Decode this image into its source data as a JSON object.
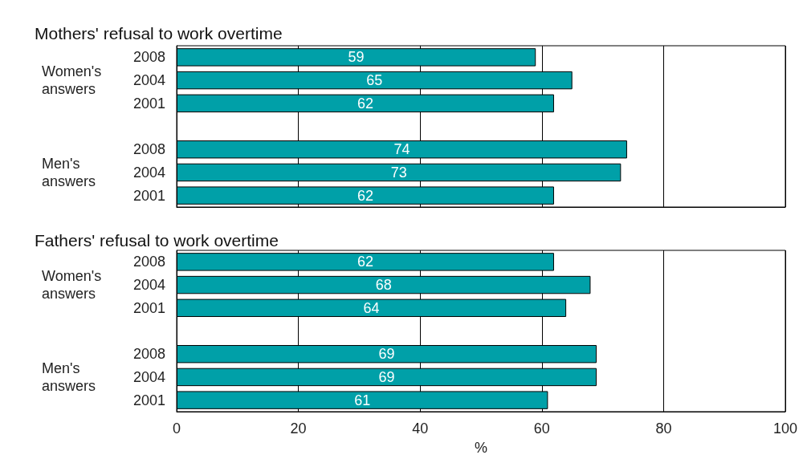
{
  "chart_data": [
    {
      "type": "bar",
      "orientation": "horizontal",
      "title": "Mothers' refusal to work overtime",
      "categories": [
        "2008",
        "2004",
        "2001",
        null,
        "2008",
        "2004",
        "2001"
      ],
      "values": [
        59,
        65,
        62,
        null,
        74,
        73,
        62
      ],
      "color": "#00a0a8",
      "data_labels": true,
      "xlim": [
        0,
        100
      ],
      "xticks": [
        0,
        20,
        40,
        60,
        80,
        100
      ],
      "grid": "x",
      "tick_labels": "y",
      "annotations": [
        "Women's answers",
        "Men's answers"
      ]
    },
    {
      "type": "bar",
      "orientation": "horizontal",
      "title": "Fathers' refusal to work overtime",
      "categories": [
        "2008",
        "2004",
        "2001",
        null,
        "2008",
        "2004",
        "2001"
      ],
      "values": [
        62,
        68,
        64,
        null,
        69,
        69,
        61
      ],
      "color": "#00a0a8",
      "data_labels": true,
      "xlim": [
        0,
        100
      ],
      "xticks": [
        0,
        20,
        40,
        60,
        80,
        100
      ],
      "grid": "x",
      "xlabel": "%",
      "annotations": [
        "Women's answers",
        "Men's answers"
      ]
    }
  ]
}
